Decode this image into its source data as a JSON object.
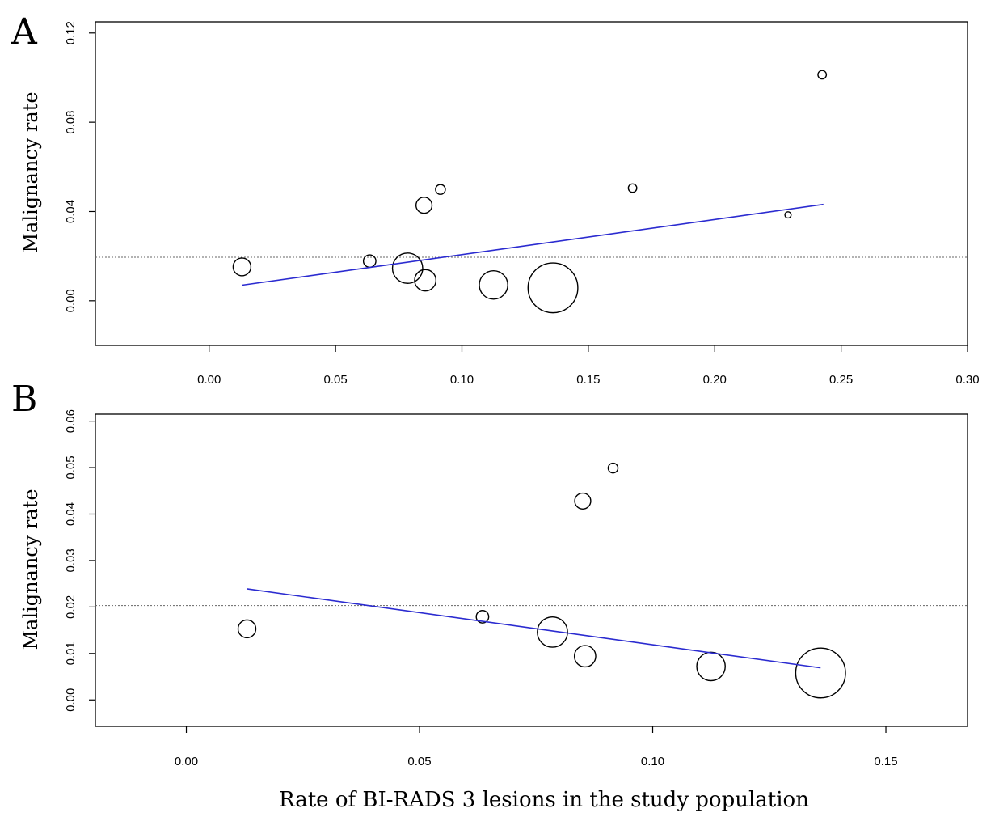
{
  "chart_data": [
    {
      "type": "scatter",
      "panel_label": "A",
      "ylabel": "Malignancy rate",
      "xlabel": "",
      "xlim": [
        -0.045,
        0.3
      ],
      "ylim": [
        -0.02,
        0.125
      ],
      "xticks": [
        "0.00",
        "0.05",
        "0.10",
        "0.15",
        "0.20",
        "0.25",
        "0.30"
      ],
      "xtick_values": [
        0,
        0.05,
        0.1,
        0.15,
        0.2,
        0.25,
        0.3
      ],
      "yticks": [
        "0.00",
        "0.04",
        "0.08",
        "0.12"
      ],
      "ytick_values": [
        0,
        0.04,
        0.08,
        0.12
      ],
      "reference_line_y": 0.0195,
      "fit_line": {
        "x": [
          0.013,
          0.243
        ],
        "y": [
          0.007,
          0.0432
        ]
      },
      "points": [
        {
          "x": 0.013,
          "y": 0.0152,
          "weight": 2.0
        },
        {
          "x": 0.0635,
          "y": 0.0178,
          "weight": 1.4
        },
        {
          "x": 0.0785,
          "y": 0.0146,
          "weight": 3.4
        },
        {
          "x": 0.085,
          "y": 0.0428,
          "weight": 1.8
        },
        {
          "x": 0.0855,
          "y": 0.0092,
          "weight": 2.4
        },
        {
          "x": 0.0915,
          "y": 0.0499,
          "weight": 1.1
        },
        {
          "x": 0.1125,
          "y": 0.0071,
          "weight": 3.2
        },
        {
          "x": 0.136,
          "y": 0.0058,
          "weight": 5.6
        },
        {
          "x": 0.1675,
          "y": 0.0505,
          "weight": 0.95
        },
        {
          "x": 0.229,
          "y": 0.0385,
          "weight": 0.7
        },
        {
          "x": 0.2425,
          "y": 0.1013,
          "weight": 0.95
        }
      ]
    },
    {
      "type": "scatter",
      "panel_label": "B",
      "ylabel": "Malignancy rate",
      "xlabel": "Rate of BI-RADS 3 lesions in the study population",
      "xlim": [
        -0.0195,
        0.1675
      ],
      "ylim": [
        -0.0057,
        0.0615
      ],
      "xticks": [
        "0.00",
        "0.05",
        "0.10",
        "0.15"
      ],
      "xtick_values": [
        0,
        0.05,
        0.1,
        0.15
      ],
      "yticks": [
        "0.00",
        "0.01",
        "0.02",
        "0.03",
        "0.04",
        "0.05",
        "0.06"
      ],
      "ytick_values": [
        0,
        0.01,
        0.02,
        0.03,
        0.04,
        0.05,
        0.06
      ],
      "reference_line_y": 0.0203,
      "fit_line": {
        "x": [
          0.013,
          0.136
        ],
        "y": [
          0.0239,
          0.0069
        ]
      },
      "points": [
        {
          "x": 0.013,
          "y": 0.0153,
          "weight": 2.0
        },
        {
          "x": 0.0635,
          "y": 0.0179,
          "weight": 1.4
        },
        {
          "x": 0.0785,
          "y": 0.0146,
          "weight": 3.4
        },
        {
          "x": 0.085,
          "y": 0.0428,
          "weight": 1.8
        },
        {
          "x": 0.0855,
          "y": 0.0094,
          "weight": 2.4
        },
        {
          "x": 0.0915,
          "y": 0.0499,
          "weight": 1.1
        },
        {
          "x": 0.1125,
          "y": 0.0072,
          "weight": 3.2
        },
        {
          "x": 0.136,
          "y": 0.0058,
          "weight": 5.6
        }
      ]
    }
  ]
}
